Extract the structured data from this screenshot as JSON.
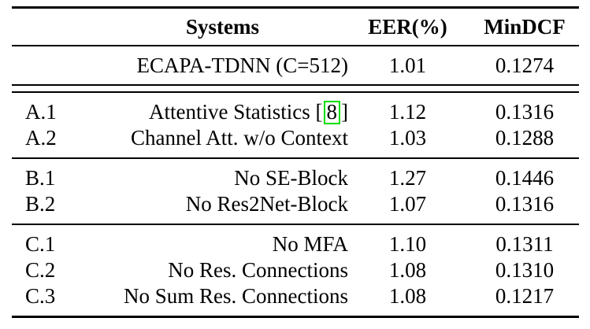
{
  "table": {
    "header": {
      "systems": "Systems",
      "eer": "EER(%)",
      "mindcf": "MinDCF"
    },
    "baseline": {
      "system": "ECAPA-TDNN (C=512)",
      "eer": "1.01",
      "mindcf": "0.1274"
    },
    "citation": {
      "open": "[",
      "number": "8",
      "close": "]",
      "box_color": "#00dd00"
    },
    "sections": [
      {
        "rows": [
          {
            "id": "A.1",
            "system": "Attentive Statistics",
            "eer": "1.12",
            "mindcf": "0.1316"
          },
          {
            "id": "A.2",
            "system": "Channel Att. w/o Context",
            "eer": "1.03",
            "mindcf": "0.1288"
          }
        ]
      },
      {
        "rows": [
          {
            "id": "B.1",
            "system": "No SE-Block",
            "eer": "1.27",
            "mindcf": "0.1446"
          },
          {
            "id": "B.2",
            "system": "No Res2Net-Block",
            "eer": "1.07",
            "mindcf": "0.1316"
          }
        ]
      },
      {
        "rows": [
          {
            "id": "C.1",
            "system": "No MFA",
            "eer": "1.10",
            "mindcf": "0.1311"
          },
          {
            "id": "C.2",
            "system": "No Res. Connections",
            "eer": "1.08",
            "mindcf": "0.1310"
          },
          {
            "id": "C.3",
            "system": "No Sum Res. Connections",
            "eer": "1.08",
            "mindcf": "0.1217"
          }
        ]
      }
    ],
    "colors": {
      "text": "#000000",
      "background": "#ffffff",
      "rule": "#000000"
    }
  }
}
